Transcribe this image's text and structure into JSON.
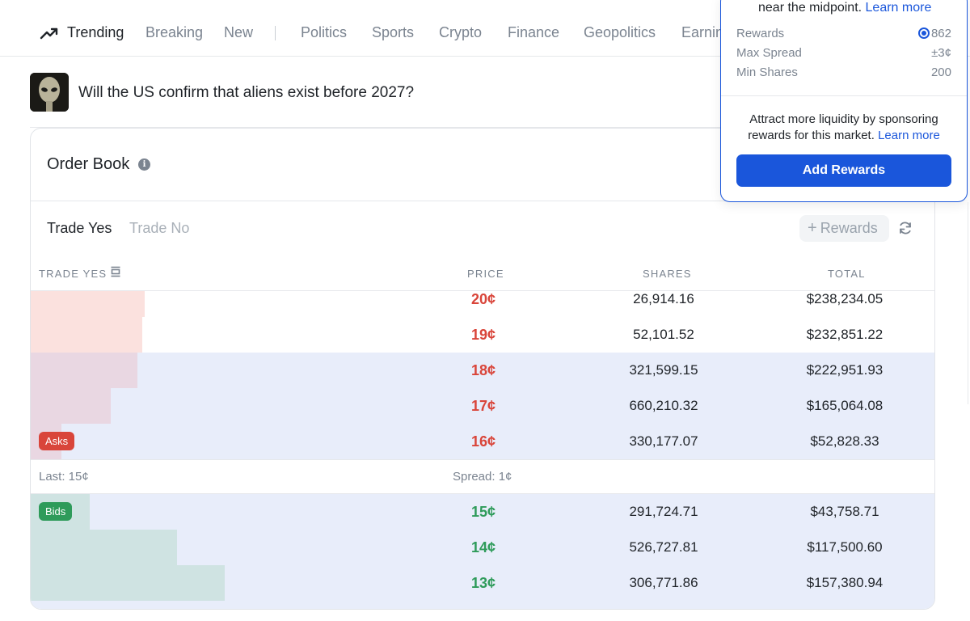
{
  "nav": {
    "items": [
      {
        "label": "Trending",
        "active": true
      },
      {
        "label": "Breaking"
      },
      {
        "label": "New"
      },
      {
        "label": "Politics"
      },
      {
        "label": "Sports"
      },
      {
        "label": "Crypto"
      },
      {
        "label": "Finance"
      },
      {
        "label": "Geopolitics"
      },
      {
        "label": "Earnin"
      }
    ],
    "trending_icon": "trending-up-icon"
  },
  "market": {
    "title": "Will the US confirm that aliens exist before 2027?",
    "thumbnail_icon": "alien-thumbnail"
  },
  "order_book": {
    "title": "Order Book",
    "tabs": [
      "Trade Yes",
      "Trade No"
    ],
    "active_tab": "Trade Yes",
    "rewards_button": "Rewards",
    "columns": {
      "trade": "TRADE YES",
      "price": "PRICE",
      "shares": "SHARES",
      "total": "TOTAL"
    },
    "asks_label": "Asks",
    "bids_label": "Bids",
    "asks": [
      {
        "price": "20¢",
        "shares": "26,914.16",
        "total": "$238,234.05",
        "depth": 0.126
      },
      {
        "price": "19¢",
        "shares": "52,101.52",
        "total": "$232,851.22",
        "depth": 0.123
      },
      {
        "price": "18¢",
        "shares": "321,599.15",
        "total": "$222,951.93",
        "depth": 0.118
      },
      {
        "price": "17¢",
        "shares": "660,210.32",
        "total": "$165,064.08",
        "depth": 0.088
      },
      {
        "price": "16¢",
        "shares": "330,177.07",
        "total": "$52,828.33",
        "depth": 0.034
      }
    ],
    "spread": {
      "last": "Last: 15¢",
      "spread": "Spread: 1¢"
    },
    "bids": [
      {
        "price": "15¢",
        "shares": "291,724.71",
        "total": "$43,758.71",
        "depth": 0.065
      },
      {
        "price": "14¢",
        "shares": "526,727.81",
        "total": "$117,500.60",
        "depth": 0.162
      },
      {
        "price": "13¢",
        "shares": "306,771.86",
        "total": "$157,380.94",
        "depth": 0.214
      }
    ],
    "colors": {
      "ask": "#d9453a",
      "bid": "#2e9b5a",
      "ask_bar": "#fbe1de",
      "ask_bar_hover": "#e9d7e2",
      "bid_bar": "#cfe3e2"
    }
  },
  "rewards_popover": {
    "top_text": "near the midpoint.",
    "learn_more": "Learn more",
    "rows": [
      {
        "label": "Rewards",
        "value": "862"
      },
      {
        "label": "Max Spread",
        "value": "±3¢"
      },
      {
        "label": "Min Shares",
        "value": "200"
      }
    ],
    "attract_text": "Attract more liquidity by sponsoring rewards for this market.",
    "add_button": "Add Rewards"
  }
}
